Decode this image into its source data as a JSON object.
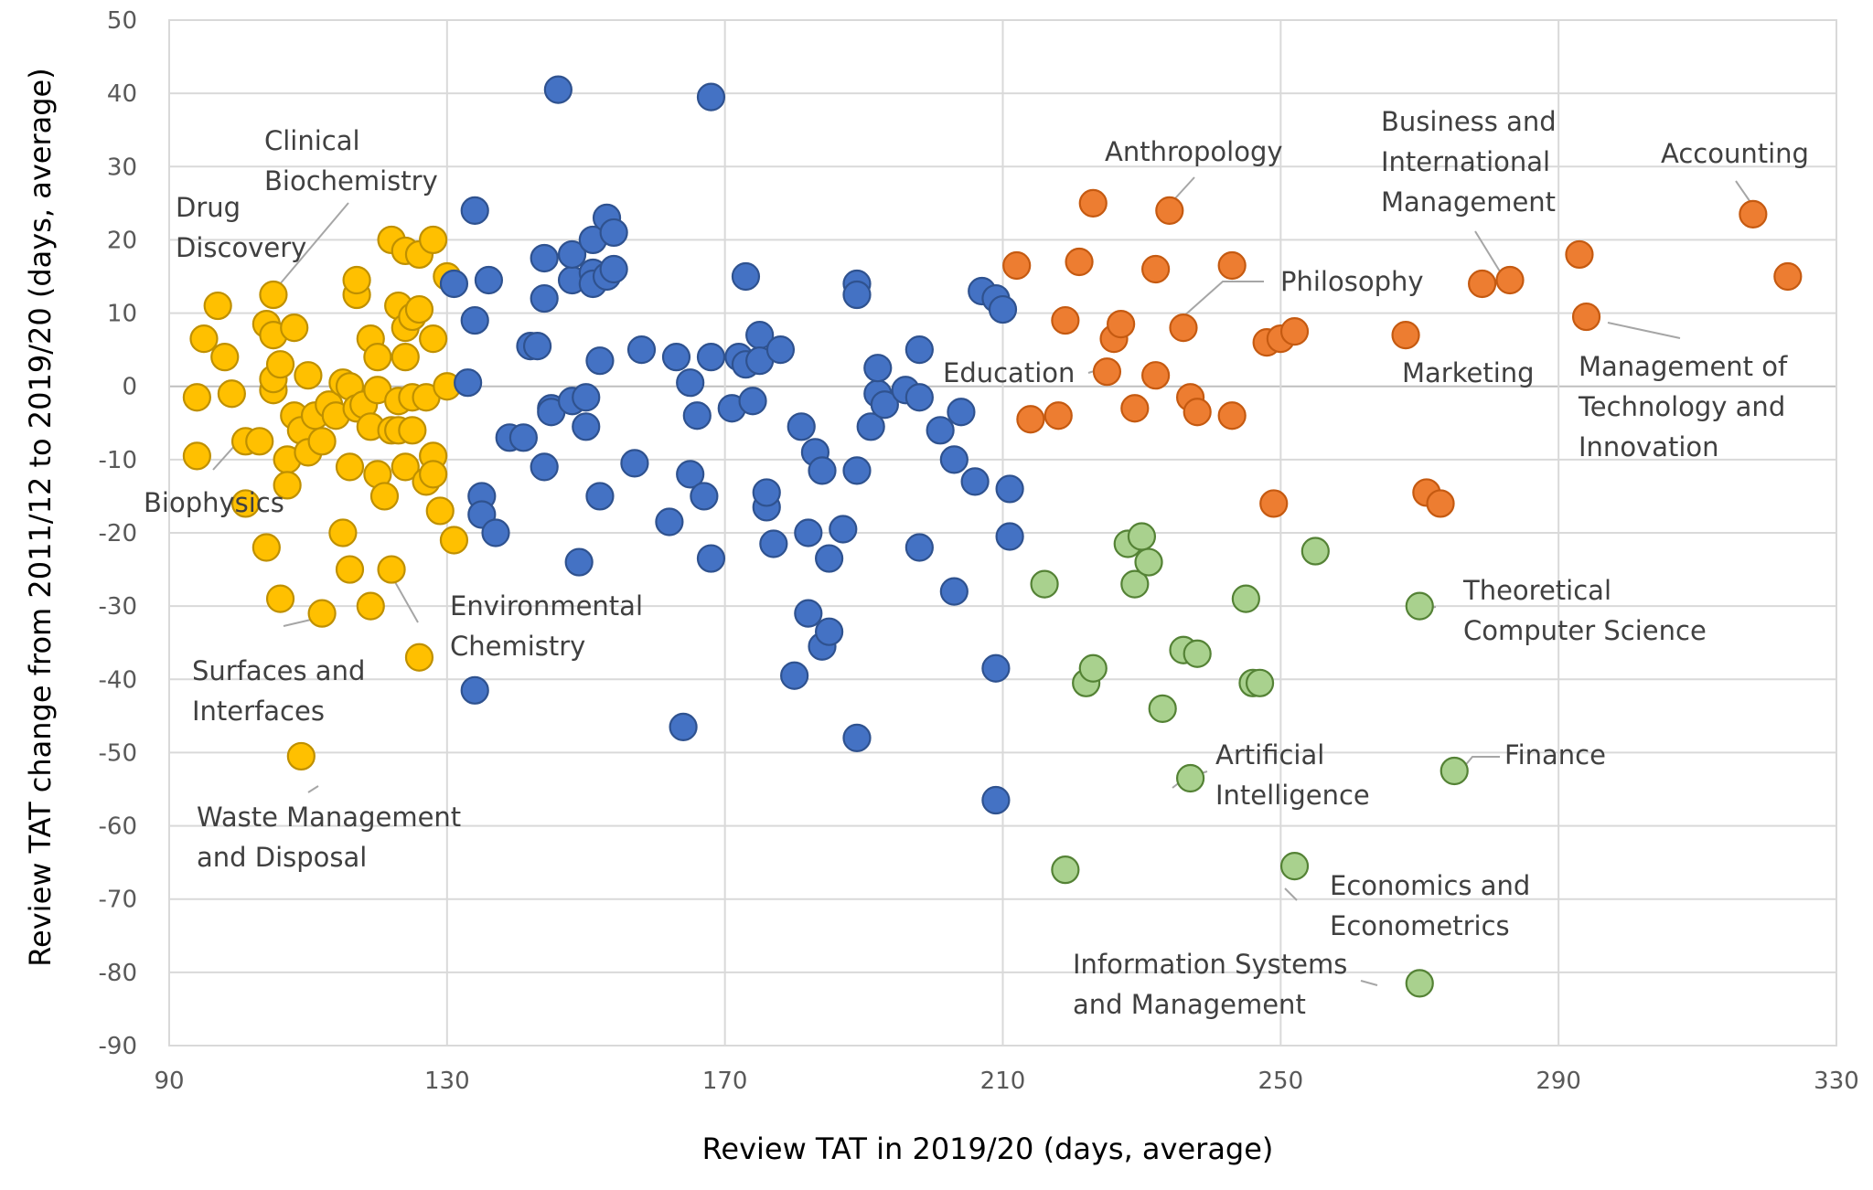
{
  "chart_data": {
    "type": "scatter",
    "title": "",
    "xlabel": "Review TAT in 2019/20 (days, average)",
    "ylabel": "Review TAT change from 2011/12 to 2019/20 (days, average)",
    "xlim": [
      90,
      330
    ],
    "ylim": [
      -90,
      50
    ],
    "x_ticks": [
      "90",
      "130",
      "170",
      "210",
      "250",
      "290",
      "330"
    ],
    "y_ticks": [
      "50",
      "40",
      "30",
      "20",
      "10",
      "0",
      "-10",
      "-20",
      "-30",
      "-40",
      "-50",
      "-60",
      "-70",
      "-80",
      "-90"
    ],
    "grid": true,
    "series": [
      {
        "name": "Yellow cluster",
        "fill": "#ffc000",
        "stroke": "#bf9000",
        "points": [
          [
            94,
            -1.5
          ],
          [
            94,
            -9.5
          ],
          [
            95,
            6.5
          ],
          [
            97,
            11
          ],
          [
            98,
            4
          ],
          [
            99,
            -1
          ],
          [
            101,
            -7.5
          ],
          [
            101,
            -16
          ],
          [
            103,
            -7.5
          ],
          [
            104,
            8.5
          ],
          [
            104,
            -22
          ],
          [
            105,
            12.5
          ],
          [
            105,
            -0.5
          ],
          [
            105,
            7
          ],
          [
            105,
            1
          ],
          [
            106,
            -29
          ],
          [
            106,
            3
          ],
          [
            107,
            -10
          ],
          [
            107,
            -13.5
          ],
          [
            108,
            -4
          ],
          [
            108,
            8
          ],
          [
            109,
            -6
          ],
          [
            110,
            1.5
          ],
          [
            110,
            -9
          ],
          [
            111,
            -4
          ],
          [
            112,
            -7.5
          ],
          [
            112,
            -31
          ],
          [
            113,
            -2.5
          ],
          [
            114,
            -4
          ],
          [
            115,
            0.5
          ],
          [
            115,
            -20
          ],
          [
            116,
            -25
          ],
          [
            116,
            0
          ],
          [
            116,
            -11
          ],
          [
            117,
            -3
          ],
          [
            117,
            12.5
          ],
          [
            117,
            14.5
          ],
          [
            118,
            -2.5
          ],
          [
            119,
            -5.5
          ],
          [
            119,
            -30
          ],
          [
            119,
            6.5
          ],
          [
            120,
            -12
          ],
          [
            120,
            -0.5
          ],
          [
            120,
            4
          ],
          [
            121,
            -15
          ],
          [
            122,
            -6
          ],
          [
            122,
            20
          ],
          [
            122,
            -25
          ],
          [
            123,
            -6
          ],
          [
            123,
            11
          ],
          [
            123,
            -2
          ],
          [
            124,
            8
          ],
          [
            124,
            4
          ],
          [
            124,
            -11
          ],
          [
            124,
            18.5
          ],
          [
            125,
            9.5
          ],
          [
            125,
            -1.5
          ],
          [
            125,
            -6
          ],
          [
            126,
            -37
          ],
          [
            126,
            18
          ],
          [
            126,
            10.5
          ],
          [
            127,
            -13
          ],
          [
            127,
            -1.5
          ],
          [
            128,
            -9.5
          ],
          [
            128,
            -12
          ],
          [
            128,
            6.5
          ],
          [
            128,
            20
          ],
          [
            129,
            -17
          ],
          [
            130,
            0
          ],
          [
            130,
            15
          ],
          [
            131,
            -21
          ],
          [
            109,
            -50.5
          ]
        ]
      },
      {
        "name": "Blue cluster",
        "fill": "#4472c4",
        "stroke": "#2f528f",
        "points": [
          [
            131,
            14
          ],
          [
            133,
            0.5
          ],
          [
            134,
            24
          ],
          [
            134,
            9
          ],
          [
            134,
            -41.5
          ],
          [
            135,
            -15
          ],
          [
            135,
            -17.5
          ],
          [
            136,
            14.5
          ],
          [
            137,
            -20
          ],
          [
            139,
            -7
          ],
          [
            141,
            -7
          ],
          [
            142,
            5.5
          ],
          [
            143,
            5.5
          ],
          [
            144,
            12
          ],
          [
            144,
            17.5
          ],
          [
            144,
            -11
          ],
          [
            145,
            -3
          ],
          [
            145,
            -3.5
          ],
          [
            146,
            40.5
          ],
          [
            148,
            -2
          ],
          [
            148,
            14.5
          ],
          [
            148,
            18
          ],
          [
            149,
            -24
          ],
          [
            150,
            -1.5
          ],
          [
            150,
            -5.5
          ],
          [
            151,
            15.5
          ],
          [
            151,
            20
          ],
          [
            151,
            14
          ],
          [
            152,
            -15
          ],
          [
            152,
            3.5
          ],
          [
            153,
            15
          ],
          [
            153,
            23
          ],
          [
            154,
            21
          ],
          [
            154,
            16
          ],
          [
            157,
            -10.5
          ],
          [
            158,
            5
          ],
          [
            162,
            -18.5
          ],
          [
            163,
            4
          ],
          [
            164,
            -46.5
          ],
          [
            165,
            0.5
          ],
          [
            165,
            -12
          ],
          [
            166,
            -4
          ],
          [
            167,
            -15
          ],
          [
            168,
            -23.5
          ],
          [
            168,
            4
          ],
          [
            171,
            -3
          ],
          [
            168,
            39.5
          ],
          [
            172,
            4
          ],
          [
            173,
            15
          ],
          [
            173,
            3
          ],
          [
            174,
            -2
          ],
          [
            175,
            7
          ],
          [
            175,
            3.5
          ],
          [
            176,
            -16.5
          ],
          [
            176,
            -14.5
          ],
          [
            177,
            -21.5
          ],
          [
            178,
            5
          ],
          [
            180,
            -39.5
          ],
          [
            181,
            -5.5
          ],
          [
            182,
            -31
          ],
          [
            182,
            -20
          ],
          [
            183,
            -9
          ],
          [
            184,
            -11.5
          ],
          [
            184,
            -35.5
          ],
          [
            185,
            -33.5
          ],
          [
            185,
            -23.5
          ],
          [
            187,
            -19.5
          ],
          [
            189,
            14
          ],
          [
            189,
            12.5
          ],
          [
            189,
            -11.5
          ],
          [
            189,
            -48
          ],
          [
            191,
            -5.5
          ],
          [
            192,
            -1
          ],
          [
            192,
            2.5
          ],
          [
            193,
            -2.5
          ],
          [
            196,
            -0.5
          ],
          [
            198,
            -1.5
          ],
          [
            198,
            5
          ],
          [
            198,
            -22
          ],
          [
            201,
            -6
          ],
          [
            203,
            -10
          ],
          [
            203,
            -28
          ],
          [
            204,
            -3.5
          ],
          [
            206,
            -13
          ],
          [
            207,
            13
          ],
          [
            209,
            12
          ],
          [
            209,
            -38.5
          ],
          [
            209,
            -56.5
          ],
          [
            210,
            10.5
          ],
          [
            211,
            -14
          ],
          [
            211,
            -20.5
          ]
        ]
      },
      {
        "name": "Orange cluster",
        "fill": "#ed7d31",
        "stroke": "#c55a11",
        "points": [
          [
            212,
            16.5
          ],
          [
            214,
            -4.5
          ],
          [
            218,
            -4
          ],
          [
            219,
            9
          ],
          [
            221,
            17
          ],
          [
            223,
            25
          ],
          [
            225,
            2
          ],
          [
            226,
            6.5
          ],
          [
            227,
            8.5
          ],
          [
            229,
            -3
          ],
          [
            232,
            1.5
          ],
          [
            232,
            16
          ],
          [
            234,
            24
          ],
          [
            236,
            8
          ],
          [
            237,
            -1.5
          ],
          [
            238,
            -3.5
          ],
          [
            243,
            16.5
          ],
          [
            243,
            -4
          ],
          [
            248,
            6
          ],
          [
            249,
            -16
          ],
          [
            250,
            6.5
          ],
          [
            252,
            7.5
          ],
          [
            268,
            7
          ],
          [
            279,
            14
          ],
          [
            271,
            -14.5
          ],
          [
            273,
            -16
          ],
          [
            283,
            14.5
          ],
          [
            293,
            18
          ],
          [
            294,
            9.5
          ],
          [
            318,
            23.5
          ],
          [
            323,
            15
          ]
        ]
      },
      {
        "name": "Green cluster",
        "fill": "#a9d18e",
        "stroke": "#548235",
        "points": [
          [
            216,
            -27
          ],
          [
            219,
            -66
          ],
          [
            222,
            -40.5
          ],
          [
            223,
            -38.5
          ],
          [
            228,
            -21.5
          ],
          [
            229,
            -27
          ],
          [
            230,
            -20.5
          ],
          [
            231,
            -24
          ],
          [
            233,
            -44
          ],
          [
            236,
            -36
          ],
          [
            237,
            -53.5
          ],
          [
            238,
            -36.5
          ],
          [
            245,
            -29
          ],
          [
            246,
            -40.5
          ],
          [
            247,
            -40.5
          ],
          [
            255,
            -22.5
          ],
          [
            252,
            -65.5
          ],
          [
            270,
            -30
          ],
          [
            275,
            -52.5
          ],
          [
            270,
            -81.5
          ]
        ]
      }
    ],
    "annotations": [
      {
        "lines": [
          "Clinical",
          "Biochemistry"
        ]
      },
      {
        "lines": [
          "Drug",
          "Discovery"
        ]
      },
      {
        "lines": [
          "Biophysics"
        ]
      },
      {
        "lines": [
          "Environmental",
          "Chemistry"
        ]
      },
      {
        "lines": [
          "Surfaces and",
          "Interfaces"
        ]
      },
      {
        "lines": [
          "Waste Management",
          "and Disposal"
        ]
      },
      {
        "lines": [
          "Anthropology"
        ]
      },
      {
        "lines": [
          "Philosophy"
        ]
      },
      {
        "lines": [
          "Education"
        ]
      },
      {
        "lines": [
          "Business and",
          "International",
          "Management"
        ]
      },
      {
        "lines": [
          "Accounting"
        ]
      },
      {
        "lines": [
          "Marketing"
        ]
      },
      {
        "lines": [
          "Management of",
          "Technology and",
          "Innovation"
        ]
      },
      {
        "lines": [
          "Theoretical",
          "Computer Science"
        ]
      },
      {
        "lines": [
          "Artificial",
          "Intelligence"
        ]
      },
      {
        "lines": [
          "Finance"
        ]
      },
      {
        "lines": [
          "Economics and",
          "Econometrics"
        ]
      },
      {
        "lines": [
          "Information Systems",
          "and Management"
        ]
      }
    ]
  }
}
